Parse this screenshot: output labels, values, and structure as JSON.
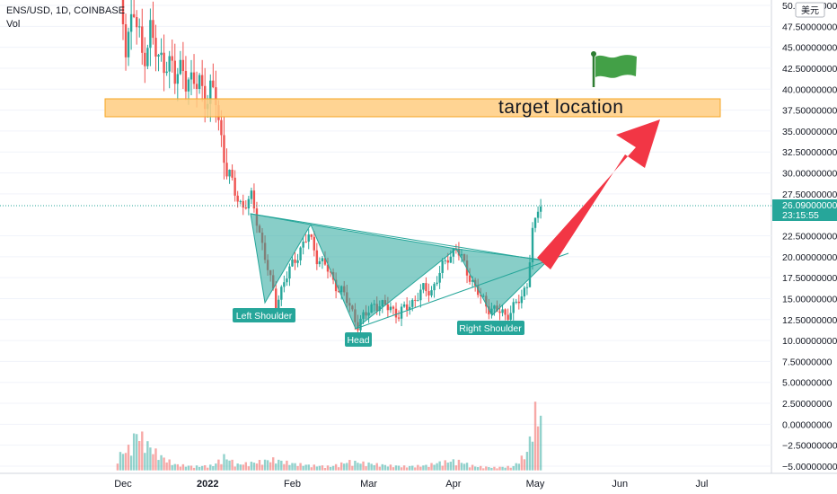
{
  "chart_data": {
    "type": "candlestick",
    "symbol_line": "ENS/USD, 1D, COINBASE",
    "volume_label": "Vol",
    "currency_badge": "美元",
    "price_axis_ticks": [
      50,
      47.5,
      45,
      42.5,
      40,
      37.5,
      35,
      32.5,
      30,
      27.5,
      22.5,
      20,
      17.5,
      15,
      12.5,
      10,
      7.5,
      5,
      2.5,
      0,
      -2.5,
      -5
    ],
    "price_axis_labels": [
      "50.00000000",
      "47.50000000",
      "45.00000000",
      "42.50000000",
      "40.00000000",
      "37.50000000",
      "35.00000000",
      "32.50000000",
      "30.00000000",
      "27.50000000",
      "22.50000000",
      "20.00000000",
      "17.50000000",
      "15.00000000",
      "12.50000000",
      "10.00000000",
      "7.50000000",
      "5.00000000",
      "2.50000000",
      "0.00000000",
      "−2.50000000",
      "−5.00000000"
    ],
    "current_price": "26.09000000",
    "countdown": "23:15:55",
    "time_axis_labels": [
      "Dec",
      "2022",
      "Feb",
      "Mar",
      "Apr",
      "May",
      "Jun",
      "Jul"
    ],
    "price_series": [
      [
        "2021-11-29",
        53
      ],
      [
        "2021-12-02",
        46
      ],
      [
        "2021-12-05",
        49
      ],
      [
        "2021-12-08",
        44
      ],
      [
        "2021-12-11",
        47
      ],
      [
        "2021-12-14",
        43
      ],
      [
        "2021-12-17",
        44
      ],
      [
        "2021-12-20",
        41
      ],
      [
        "2021-12-23",
        43
      ],
      [
        "2021-12-26",
        40
      ],
      [
        "2021-12-29",
        41
      ],
      [
        "2022-01-01",
        39
      ],
      [
        "2022-01-04",
        39
      ],
      [
        "2022-01-06",
        34
      ],
      [
        "2022-01-08",
        31
      ],
      [
        "2022-01-11",
        27.5
      ],
      [
        "2022-01-14",
        26
      ],
      [
        "2022-01-17",
        27
      ],
      [
        "2022-01-20",
        23
      ],
      [
        "2022-01-24",
        17
      ],
      [
        "2022-01-26",
        14.5
      ],
      [
        "2022-01-29",
        17
      ],
      [
        "2022-02-01",
        19
      ],
      [
        "2022-02-04",
        21
      ],
      [
        "2022-02-07",
        22.5
      ],
      [
        "2022-02-10",
        20
      ],
      [
        "2022-02-13",
        19
      ],
      [
        "2022-02-16",
        17
      ],
      [
        "2022-02-19",
        16
      ],
      [
        "2022-02-22",
        14
      ],
      [
        "2022-02-25",
        12
      ],
      [
        "2022-02-28",
        13
      ],
      [
        "2022-03-03",
        14.5
      ],
      [
        "2022-03-06",
        14
      ],
      [
        "2022-03-09",
        14
      ],
      [
        "2022-03-12",
        13
      ],
      [
        "2022-03-15",
        14
      ],
      [
        "2022-03-18",
        15
      ],
      [
        "2022-03-21",
        16
      ],
      [
        "2022-03-24",
        16
      ],
      [
        "2022-03-27",
        18
      ],
      [
        "2022-03-30",
        20
      ],
      [
        "2022-04-02",
        21
      ],
      [
        "2022-04-05",
        19
      ],
      [
        "2022-04-08",
        17
      ],
      [
        "2022-04-11",
        15
      ],
      [
        "2022-04-14",
        14
      ],
      [
        "2022-04-17",
        13.5
      ],
      [
        "2022-04-20",
        13
      ],
      [
        "2022-04-23",
        14
      ],
      [
        "2022-04-26",
        15
      ],
      [
        "2022-04-28",
        17
      ],
      [
        "2022-04-30",
        23
      ],
      [
        "2022-05-01",
        24
      ],
      [
        "2022-05-02",
        25.5
      ],
      [
        "2022-05-03",
        26.09
      ]
    ],
    "volume_series": [
      [
        "2021-11-29",
        1.4
      ],
      [
        "2021-12-03",
        2.2
      ],
      [
        "2021-12-06",
        3.8
      ],
      [
        "2021-12-08",
        3.3
      ],
      [
        "2021-12-11",
        2.3
      ],
      [
        "2021-12-15",
        1.4
      ],
      [
        "2021-12-20",
        0.6
      ],
      [
        "2021-12-27",
        0.4
      ],
      [
        "2022-01-03",
        0.5
      ],
      [
        "2022-01-07",
        1.4
      ],
      [
        "2022-01-12",
        0.6
      ],
      [
        "2022-01-18",
        0.8
      ],
      [
        "2022-01-25",
        1.1
      ],
      [
        "2022-02-01",
        0.7
      ],
      [
        "2022-02-08",
        0.5
      ],
      [
        "2022-02-15",
        0.4
      ],
      [
        "2022-02-22",
        0.9
      ],
      [
        "2022-03-01",
        0.7
      ],
      [
        "2022-03-08",
        0.5
      ],
      [
        "2022-03-15",
        0.4
      ],
      [
        "2022-03-22",
        0.5
      ],
      [
        "2022-03-27",
        0.8
      ],
      [
        "2022-04-02",
        1.0
      ],
      [
        "2022-04-09",
        0.4
      ],
      [
        "2022-04-16",
        0.3
      ],
      [
        "2022-04-23",
        0.4
      ],
      [
        "2022-04-28",
        1.8
      ],
      [
        "2022-05-01",
        5.8
      ],
      [
        "2022-05-03",
        5.5
      ]
    ],
    "annotations": {
      "target_label": "target location",
      "target_zone": [
        37,
        39
      ],
      "labels": [
        "Left Shoulder",
        "Head",
        "Right Shoulder"
      ]
    },
    "colors": {
      "up": "#26a69a",
      "down": "#ef5350",
      "pattern_fill": "#4db6a2",
      "pattern_line": "#26a69a",
      "target_zone_fill": "#ffcc80",
      "target_zone_border": "#f5a623",
      "arrow": "#f23645",
      "flag": "#43a047",
      "price_badge": "#26a69a",
      "axis_text": "#131722",
      "grid": "#f0f3fa"
    }
  }
}
